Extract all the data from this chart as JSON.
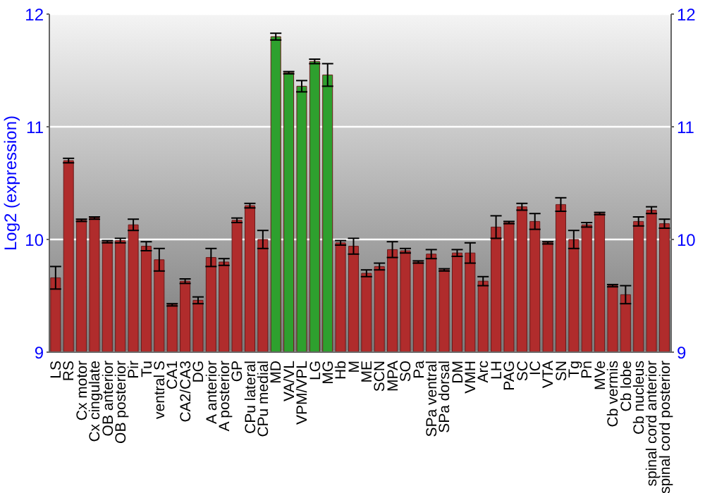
{
  "chart_data": {
    "type": "bar",
    "ylabel": "Log2 (expression)",
    "categories": [
      "LS",
      "RS",
      "Cx motor",
      "Cx cingulate",
      "OB anterior",
      "OB posterior",
      "Pir",
      "Tu",
      "ventral S",
      "CA1",
      "CA2/CA3",
      "DG",
      "A anterior",
      "A posterior",
      "GP",
      "CPu lateral",
      "CPu medial",
      "MD",
      "VA/VL",
      "VPM/VPL",
      "LG",
      "MG",
      "Hb",
      "M",
      "ME",
      "SCN",
      "MPA",
      "SO",
      "Pa",
      "SPa ventral",
      "SPa dorsal",
      "DM",
      "VMH",
      "Arc",
      "LH",
      "PAG",
      "SC",
      "IC",
      "VTA",
      "SN",
      "Tg",
      "Pn",
      "MVe",
      "Cb vermis",
      "Cb lobe",
      "Cb nucleus",
      "spinal cord anterior",
      "spinal cord posterior"
    ],
    "values": [
      9.66,
      10.7,
      10.17,
      10.19,
      9.98,
      9.99,
      10.13,
      9.94,
      9.82,
      9.42,
      9.63,
      9.46,
      9.84,
      9.8,
      10.17,
      10.3,
      10.0,
      11.8,
      11.48,
      11.36,
      11.58,
      11.46,
      9.97,
      9.94,
      9.7,
      9.76,
      9.91,
      9.9,
      9.8,
      9.87,
      9.73,
      9.88,
      9.88,
      9.63,
      10.11,
      10.15,
      10.29,
      10.16,
      9.97,
      10.31,
      10.0,
      10.13,
      10.23,
      9.59,
      9.51,
      10.16,
      10.26,
      10.14
    ],
    "errors": [
      0.1,
      0.02,
      0.01,
      0.01,
      0.01,
      0.02,
      0.05,
      0.04,
      0.1,
      0.01,
      0.02,
      0.03,
      0.08,
      0.03,
      0.02,
      0.02,
      0.08,
      0.03,
      0.01,
      0.05,
      0.02,
      0.1,
      0.02,
      0.07,
      0.03,
      0.03,
      0.07,
      0.02,
      0.01,
      0.04,
      0.01,
      0.03,
      0.09,
      0.04,
      0.1,
      0.01,
      0.03,
      0.07,
      0.01,
      0.06,
      0.08,
      0.02,
      0.01,
      0.01,
      0.08,
      0.04,
      0.03,
      0.04
    ],
    "colors": [
      "#b02c2c",
      "#b02c2c",
      "#b02c2c",
      "#b02c2c",
      "#b02c2c",
      "#b02c2c",
      "#b02c2c",
      "#b02c2c",
      "#b02c2c",
      "#b02c2c",
      "#b02c2c",
      "#b02c2c",
      "#b02c2c",
      "#b02c2c",
      "#b02c2c",
      "#b02c2c",
      "#b02c2c",
      "#2ea02e",
      "#2ea02e",
      "#2ea02e",
      "#2ea02e",
      "#2ea02e",
      "#b02c2c",
      "#b02c2c",
      "#b02c2c",
      "#b02c2c",
      "#b02c2c",
      "#b02c2c",
      "#b02c2c",
      "#b02c2c",
      "#b02c2c",
      "#b02c2c",
      "#b02c2c",
      "#b02c2c",
      "#b02c2c",
      "#b02c2c",
      "#b02c2c",
      "#b02c2c",
      "#b02c2c",
      "#b02c2c",
      "#b02c2c",
      "#b02c2c",
      "#b02c2c",
      "#b02c2c",
      "#b02c2c",
      "#b02c2c",
      "#b02c2c",
      "#b02c2c"
    ],
    "ylim": [
      9,
      12
    ],
    "yticks": [
      9,
      10,
      11,
      12
    ],
    "y2lim": [
      9,
      12
    ],
    "y2ticks": [
      9,
      10,
      11,
      12
    ],
    "grid": "y"
  }
}
